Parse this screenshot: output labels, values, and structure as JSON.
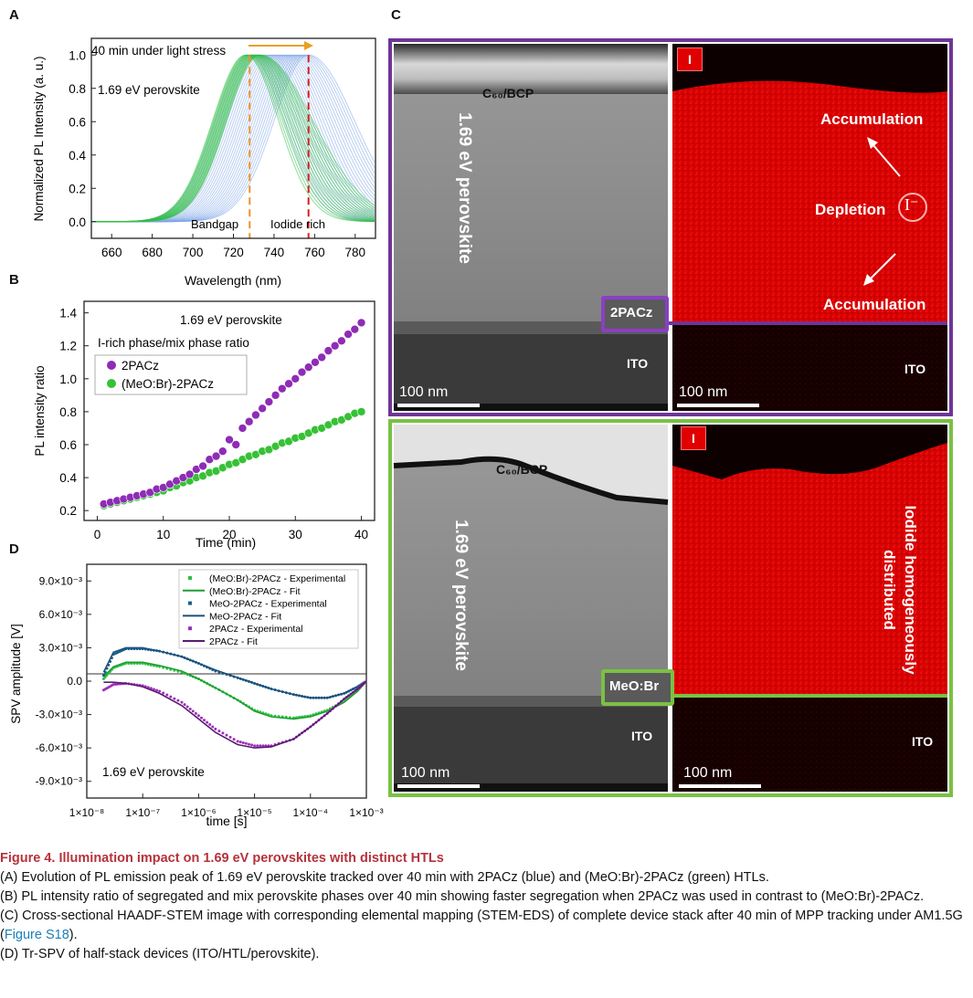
{
  "panels": {
    "a": "A",
    "b": "B",
    "c": "C",
    "d": "D"
  },
  "chart_data": [
    {
      "panel": "A",
      "type": "line",
      "xlabel": "Wavelength (nm)",
      "ylabel": "Normalized PL Intensity (a. u.)",
      "xlim": [
        650,
        790
      ],
      "ylim": [
        -0.1,
        1.1
      ],
      "xticks": [
        "660",
        "680",
        "700",
        "720",
        "740",
        "760",
        "780"
      ],
      "yticks": [
        "0.0",
        "0.2",
        "0.4",
        "0.6",
        "0.8",
        "1.0"
      ],
      "annotations": [
        "40 min under light stress",
        "1.69 eV perovskite",
        "Bandgap",
        "Iodide rich"
      ],
      "markers": {
        "bandgap_nm": 728,
        "iodide_rich_nm": 757
      },
      "series": [
        {
          "name": "2PACz",
          "color": "#7fa6e8",
          "peak_start_nm": 728,
          "peak_end_nm": 757
        },
        {
          "name": "(MeO:Br)-2PACz",
          "color": "#2fc043",
          "peak_start_nm": 726,
          "peak_end_nm": 733
        }
      ]
    },
    {
      "panel": "B",
      "type": "scatter",
      "xlabel": "Time (min)",
      "ylabel": "PL intensity ratio",
      "xlim": [
        -2,
        42
      ],
      "ylim": [
        0.14,
        1.47
      ],
      "xticks": [
        "0",
        "10",
        "20",
        "30",
        "40"
      ],
      "yticks": [
        "0.2",
        "0.4",
        "0.6",
        "0.8",
        "1.0",
        "1.2",
        "1.4"
      ],
      "annotations": [
        "1.69 eV perovskite",
        "I-rich phase/mix phase ratio"
      ],
      "series": [
        {
          "name": "2PACz",
          "color": "#8e2cb6",
          "x": [
            1,
            2,
            3,
            4,
            5,
            6,
            7,
            8,
            9,
            10,
            11,
            12,
            13,
            14,
            15,
            16,
            17,
            18,
            19,
            20,
            21,
            22,
            23,
            24,
            25,
            26,
            27,
            28,
            29,
            30,
            31,
            32,
            33,
            34,
            35,
            36,
            37,
            38,
            39,
            40
          ],
          "y": [
            0.24,
            0.25,
            0.26,
            0.27,
            0.28,
            0.29,
            0.3,
            0.31,
            0.33,
            0.34,
            0.36,
            0.38,
            0.4,
            0.42,
            0.45,
            0.47,
            0.51,
            0.53,
            0.56,
            0.63,
            0.6,
            0.7,
            0.74,
            0.78,
            0.82,
            0.86,
            0.9,
            0.94,
            0.97,
            1.0,
            1.04,
            1.07,
            1.1,
            1.13,
            1.17,
            1.2,
            1.23,
            1.27,
            1.3,
            1.34
          ]
        },
        {
          "name": "(MeO:Br)-2PACz",
          "color": "#36c136",
          "x": [
            1,
            2,
            3,
            4,
            5,
            6,
            7,
            8,
            9,
            10,
            11,
            12,
            13,
            14,
            15,
            16,
            17,
            18,
            19,
            20,
            21,
            22,
            23,
            24,
            25,
            26,
            27,
            28,
            29,
            30,
            31,
            32,
            33,
            34,
            35,
            36,
            37,
            38,
            39,
            40
          ],
          "y": [
            0.23,
            0.24,
            0.25,
            0.26,
            0.27,
            0.28,
            0.29,
            0.3,
            0.31,
            0.32,
            0.34,
            0.35,
            0.37,
            0.38,
            0.4,
            0.41,
            0.43,
            0.44,
            0.46,
            0.48,
            0.49,
            0.51,
            0.53,
            0.54,
            0.56,
            0.57,
            0.59,
            0.61,
            0.62,
            0.64,
            0.65,
            0.67,
            0.69,
            0.7,
            0.72,
            0.74,
            0.75,
            0.77,
            0.79,
            0.8
          ]
        }
      ]
    },
    {
      "panel": "D",
      "type": "line",
      "xlabel": "time [s]",
      "ylabel": "SPV amplitude [V]",
      "xscale": "log",
      "xlim": [
        1e-08,
        0.001
      ],
      "ylim": [
        -0.0105,
        0.0105
      ],
      "xticks": [
        "1×10⁻⁸",
        "1×10⁻⁷",
        "1×10⁻⁶",
        "1×10⁻⁵",
        "1×10⁻⁴",
        "1×10⁻³"
      ],
      "yticks": [
        "9.0×10⁻³",
        "6.0×10⁻³",
        "3.0×10⁻³",
        "0.0",
        "-3.0×10⁻³",
        "-6.0×10⁻³",
        "-9.0×10⁻³"
      ],
      "ytick_values": [
        0.009,
        0.006,
        0.003,
        0,
        -0.003,
        -0.006,
        -0.009
      ],
      "annotations": [
        "1.69 eV perovskite"
      ],
      "legend": "top-right",
      "series": [
        {
          "name": "(MeO:Br)-2PACz - Experimental",
          "style": "dots",
          "color": "#2fc043",
          "x": [
            2e-08,
            3e-08,
            5e-08,
            1e-07,
            2e-07,
            5e-07,
            1e-06,
            2e-06,
            5e-06,
            1e-05,
            2e-05,
            5e-05,
            0.0001,
            0.0002,
            0.0004,
            0.0007,
            0.001
          ],
          "y": [
            0.0002,
            0.0012,
            0.0016,
            0.0016,
            0.0013,
            0.0008,
            0.0002,
            -0.0006,
            -0.0017,
            -0.0026,
            -0.0031,
            -0.0033,
            -0.0031,
            -0.0026,
            -0.0018,
            -0.0008,
            0
          ]
        },
        {
          "name": "(MeO:Br)-2PACz - Fit",
          "style": "line",
          "color": "#1e9e30",
          "x": [
            2e-08,
            3e-08,
            5e-08,
            1e-07,
            2e-07,
            5e-07,
            1e-06,
            2e-06,
            5e-06,
            1e-05,
            2e-05,
            5e-05,
            0.0001,
            0.0002,
            0.0004,
            0.0007,
            0.001
          ],
          "y": [
            0.0004,
            0.0013,
            0.0017,
            0.0017,
            0.0014,
            0.0009,
            0.0002,
            -0.0006,
            -0.0017,
            -0.0027,
            -0.0032,
            -0.0034,
            -0.0032,
            -0.0027,
            -0.0019,
            -0.0009,
            0
          ]
        },
        {
          "name": "MeO-2PACz - Experimental",
          "style": "dots",
          "color": "#1c5f8a",
          "x": [
            2e-08,
            3e-08,
            5e-08,
            1e-07,
            2e-07,
            5e-07,
            1e-06,
            2e-06,
            5e-06,
            1e-05,
            2e-05,
            5e-05,
            0.0001,
            0.0002,
            0.0004,
            0.0007,
            0.001
          ],
          "y": [
            0.0005,
            0.0024,
            0.0029,
            0.0029,
            0.0027,
            0.0022,
            0.0016,
            0.0009,
            0.0003,
            -0.0002,
            -0.0007,
            -0.0012,
            -0.0015,
            -0.0015,
            -0.0011,
            -0.0005,
            0
          ]
        },
        {
          "name": "MeO-2PACz - Fit",
          "style": "line",
          "color": "#1b4f7a",
          "x": [
            2e-08,
            3e-08,
            5e-08,
            1e-07,
            2e-07,
            5e-07,
            1e-06,
            2e-06,
            5e-06,
            1e-05,
            2e-05,
            5e-05,
            0.0001,
            0.0002,
            0.0004,
            0.0007,
            0.001
          ],
          "y": [
            0.0008,
            0.0026,
            0.003,
            0.003,
            0.0027,
            0.0022,
            0.0016,
            0.001,
            0.0003,
            -0.0002,
            -0.0007,
            -0.0012,
            -0.0015,
            -0.0015,
            -0.0011,
            -0.0005,
            0
          ]
        },
        {
          "name": "2PACz - Experimental",
          "style": "dots",
          "color": "#9a30b8",
          "x": [
            2e-08,
            3e-08,
            5e-08,
            1e-07,
            2e-07,
            5e-07,
            1e-06,
            2e-06,
            5e-06,
            1e-05,
            2e-05,
            5e-05,
            0.0001,
            0.0002,
            0.0004,
            0.0007,
            0.001
          ],
          "y": [
            -0.0008,
            -0.0003,
            -0.0002,
            -0.0004,
            -0.0009,
            -0.0019,
            -0.0031,
            -0.0043,
            -0.0054,
            -0.0058,
            -0.0058,
            -0.0052,
            -0.0041,
            -0.0029,
            -0.0016,
            -0.0007,
            0
          ]
        },
        {
          "name": "2PACz - Fit",
          "style": "line",
          "color": "#5a1a70",
          "x": [
            2e-08,
            3e-08,
            5e-08,
            1e-07,
            2e-07,
            5e-07,
            1e-06,
            2e-06,
            5e-06,
            1e-05,
            2e-05,
            5e-05,
            0.0001,
            0.0002,
            0.0004,
            0.0007,
            0.001
          ],
          "y": [
            -0.0001,
            -0.0001,
            -0.0002,
            -0.0005,
            -0.0011,
            -0.0022,
            -0.0034,
            -0.0046,
            -0.0057,
            -0.006,
            -0.0059,
            -0.0052,
            -0.0041,
            -0.0029,
            -0.0016,
            -0.0007,
            0
          ]
        }
      ]
    }
  ],
  "stem": {
    "top": {
      "left_labels": {
        "c60": "C₆₀/BCP",
        "layer": "1.69 eV perovskite",
        "htl": "2PACz",
        "ito": "ITO",
        "scale": "100 nm"
      },
      "right_labels": {
        "element": "I",
        "acc_top": "Accumulation",
        "depletion": "Depletion",
        "ion": "I⁻",
        "acc_bottom": "Accumulation",
        "ito": "ITO",
        "scale": "100 nm"
      },
      "frame_color": "#6f3596"
    },
    "bottom": {
      "left_labels": {
        "c60": "C₆₀/BCP",
        "layer": "1.69 eV perovskite",
        "htl": "MeO:Br",
        "ito": "ITO",
        "scale": "100 nm"
      },
      "right_labels": {
        "element": "I",
        "homog": "Iodide homogeneously distributed",
        "ito": "ITO",
        "scale": "100 nm"
      },
      "frame_color": "#7ac143"
    }
  },
  "caption": {
    "title": "Figure 4.  Illumination impact on 1.69 eV perovskites with distinct HTLs",
    "a": "(A) Evolution of PL emission peak of 1.69 eV perovskite tracked over 40 min with 2PACz (blue) and (MeO:Br)-2PACz (green) HTLs.",
    "b": "(B) PL intensity ratio of segregated and mix perovskite phases over 40 min showing faster segregation when 2PACz was used in contrast to (MeO:Br)-2PACz.",
    "c_pre": "(C) Cross-sectional HAADF-STEM image with corresponding elemental mapping (STEM-EDS) of complete device stack after 40 min of MPP tracking under AM1.5G (",
    "c_link": "Figure S18",
    "c_post": ").",
    "d": "(D) Tr-SPV of half-stack devices (ITO/HTL/perovskite)."
  }
}
